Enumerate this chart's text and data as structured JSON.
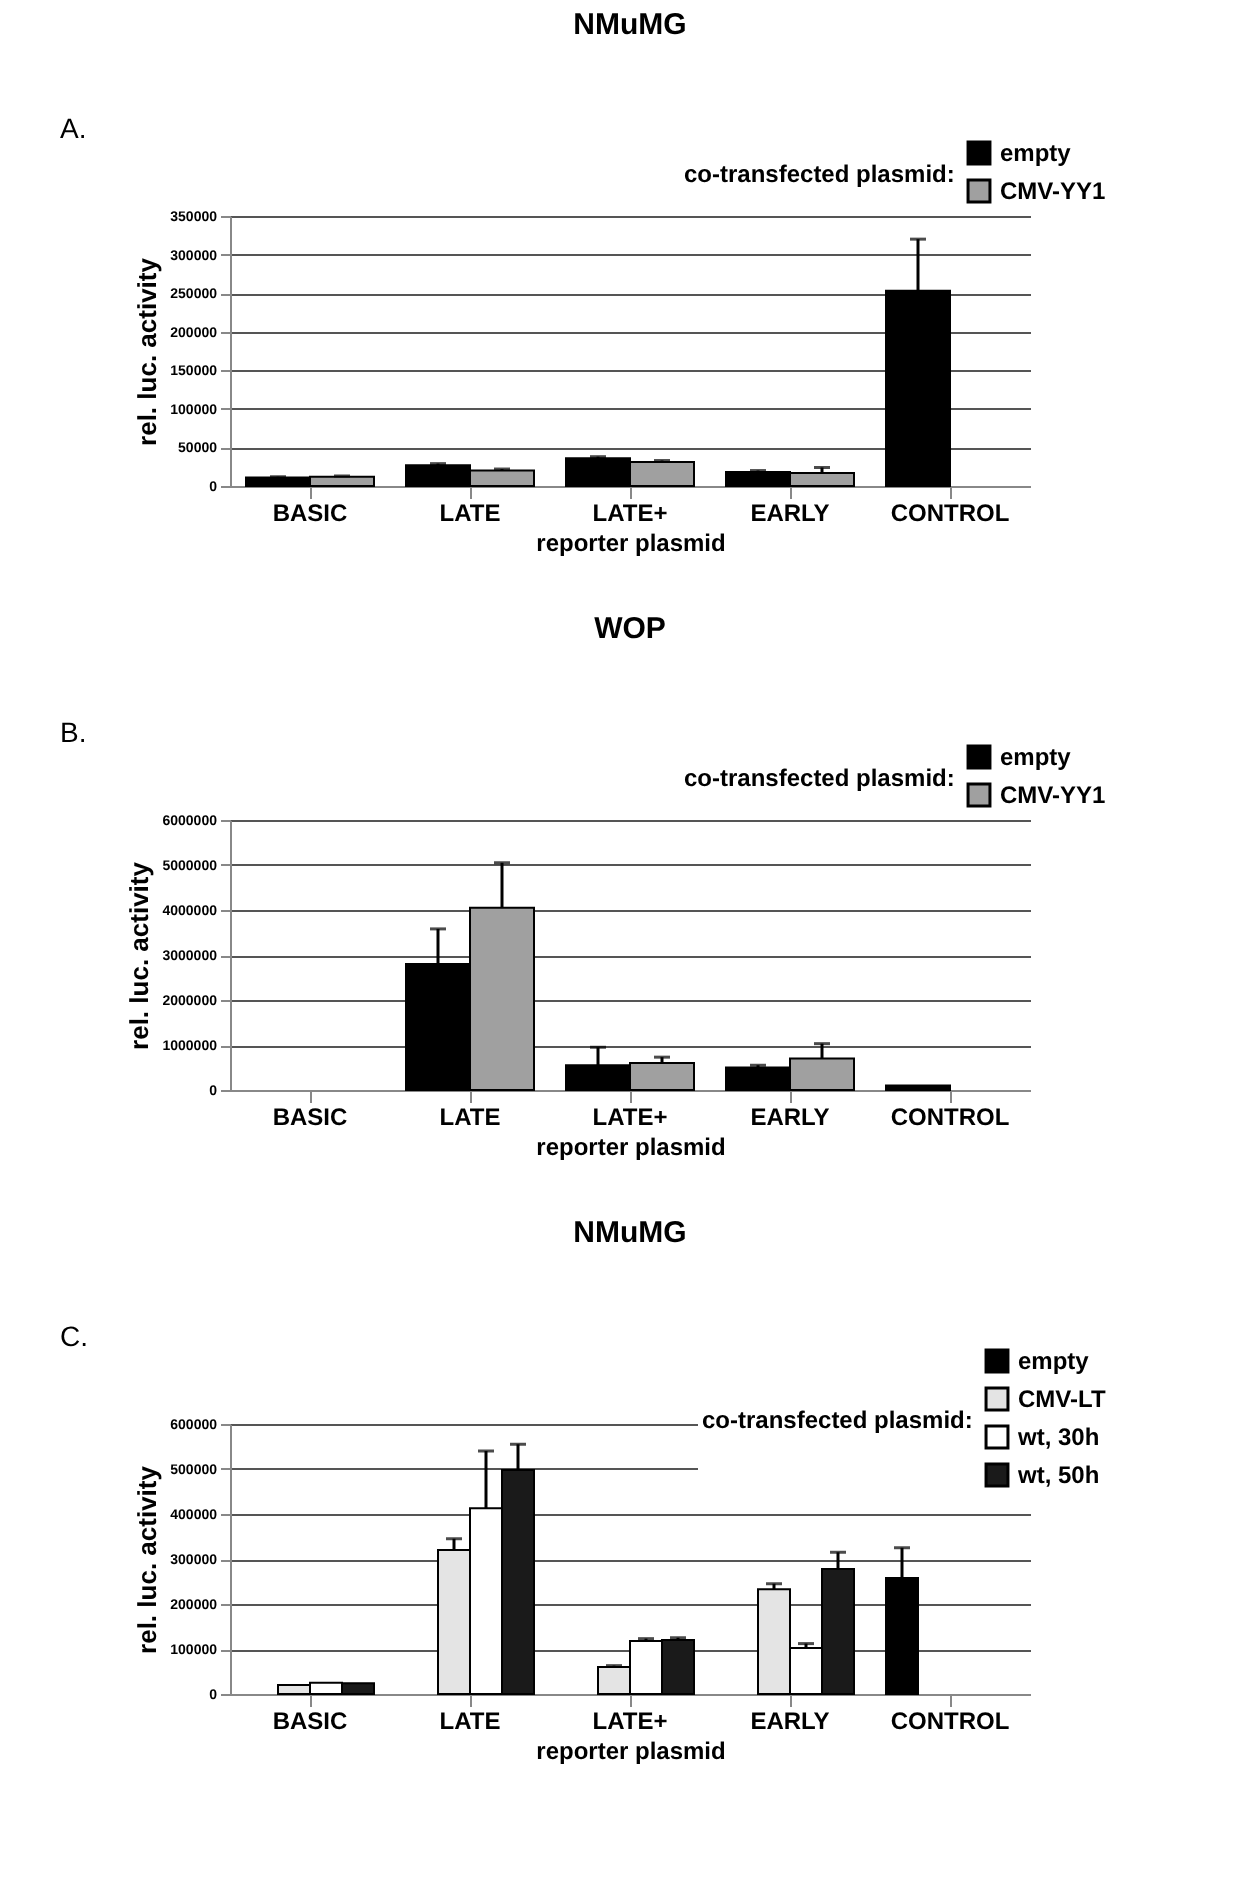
{
  "chart_data": [
    {
      "type": "bar",
      "title": "NMuMG",
      "legend_title": "co-transfected plasmid:",
      "xlabel": "reporter plasmid",
      "ylabel": "rel. luc. activity",
      "annotations": [
        "A."
      ],
      "categories": [
        "BASIC",
        "LATE",
        "LATE+",
        "EARLY",
        "CONTROL"
      ],
      "ylim": [
        0,
        350000
      ],
      "yticks": [
        0,
        50000,
        100000,
        150000,
        200000,
        250000,
        300000,
        350000
      ],
      "grid": "y",
      "legend": "top right",
      "series": [
        {
          "name": "empty",
          "color": "#000000",
          "values": [
            11000,
            27000,
            36000,
            18000,
            253000
          ],
          "errors": [
            [
              11000,
              12000
            ],
            [
              27000,
              29000
            ],
            [
              36000,
              38000
            ],
            [
              18000,
              20000
            ],
            [
              253000,
              320000
            ]
          ]
        },
        {
          "name": "CMV-YY1",
          "color": "#a0a0a0",
          "values": [
            12000,
            20000,
            31000,
            17000,
            null
          ],
          "errors": [
            [
              12000,
              13000
            ],
            [
              20000,
              22000
            ],
            [
              31000,
              33000
            ],
            [
              17000,
              24000
            ],
            null
          ]
        }
      ]
    },
    {
      "type": "bar",
      "title": "WOP",
      "legend_title": "co-transfected plasmid:",
      "xlabel": "reporter plasmid",
      "ylabel": "rel. luc. activity",
      "annotations": [
        "B."
      ],
      "categories": [
        "BASIC",
        "LATE",
        "LATE+",
        "EARLY",
        "CONTROL"
      ],
      "ylim": [
        0,
        6000000
      ],
      "yticks": [
        0,
        1000000,
        2000000,
        3000000,
        4000000,
        5000000,
        6000000
      ],
      "grid": "y",
      "legend": "top right",
      "series": [
        {
          "name": "empty",
          "color": "#000000",
          "values": [
            null,
            2800000,
            550000,
            500000,
            100000
          ],
          "errors": [
            null,
            [
              2800000,
              3580000
            ],
            [
              550000,
              950000
            ],
            [
              500000,
              550000
            ],
            null
          ]
        },
        {
          "name": "CMV-YY1",
          "color": "#a0a0a0",
          "values": [
            null,
            4050000,
            600000,
            700000,
            null
          ],
          "errors": [
            null,
            [
              4050000,
              5050000
            ],
            [
              600000,
              730000
            ],
            [
              700000,
              1030000
            ],
            null
          ]
        }
      ]
    },
    {
      "type": "bar",
      "title": "NMuMG",
      "legend_title": "co-transfected plasmid:",
      "xlabel": "reporter plasmid",
      "ylabel": "rel. luc. activity",
      "annotations": [
        "C."
      ],
      "categories": [
        "BASIC",
        "LATE",
        "LATE+",
        "EARLY",
        "CONTROL"
      ],
      "ylim": [
        0,
        600000
      ],
      "yticks": [
        0,
        100000,
        200000,
        300000,
        400000,
        500000,
        600000
      ],
      "grid": "y",
      "legend": "top right",
      "series": [
        {
          "name": "empty",
          "color": "#000000",
          "values": [
            null,
            null,
            null,
            null,
            258000
          ],
          "errors": [
            null,
            null,
            null,
            null,
            [
              258000,
              325000
            ]
          ]
        },
        {
          "name": "CMV-LT",
          "color": "#e4e4e4",
          "values": [
            20000,
            320000,
            60000,
            233000,
            null
          ],
          "errors": [
            null,
            [
              320000,
              345000
            ],
            [
              60000,
              63000
            ],
            [
              233000,
              245000
            ],
            null
          ]
        },
        {
          "name": "wt, 30h",
          "color": "#ffffff",
          "values": [
            25000,
            413000,
            118000,
            102000,
            null
          ],
          "errors": [
            null,
            [
              413000,
              540000
            ],
            [
              118000,
              123000
            ],
            [
              102000,
              112000
            ],
            null
          ]
        },
        {
          "name": "wt, 50h",
          "color": "#1a1a1a",
          "values": [
            24000,
            498000,
            120000,
            278000,
            null
          ],
          "errors": [
            null,
            [
              498000,
              555000
            ],
            [
              120000,
              125000
            ],
            [
              278000,
              315000
            ],
            null
          ]
        }
      ]
    }
  ]
}
